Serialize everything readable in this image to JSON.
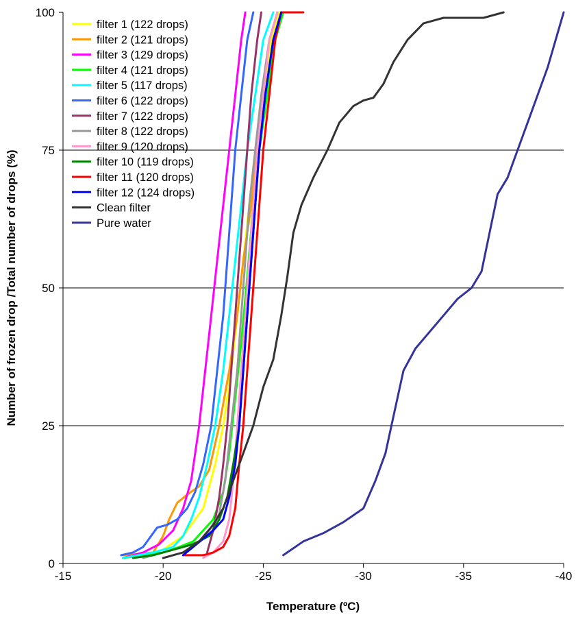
{
  "chart_data": {
    "type": "line",
    "title": "",
    "xlabel": "Temperature (ºC)",
    "ylabel": "Number of frozen drop /Total number of drops (%)",
    "xlim": [
      -15,
      -40
    ],
    "ylim": [
      0,
      100
    ],
    "x_ticks": [
      -15,
      -20,
      -25,
      -30,
      -35,
      -40
    ],
    "x_tick_labels": [
      "-15",
      "-20",
      "-25",
      "-30",
      "-35",
      "-40"
    ],
    "y_ticks": [
      0,
      25,
      50,
      75,
      100
    ],
    "y_tick_labels": [
      "0",
      "25",
      "50",
      "75",
      "100"
    ],
    "gridlines_y": [
      25,
      50,
      75
    ],
    "legend_position": "top-left",
    "series": [
      {
        "name": "filter 1  (122 drops)",
        "color": "#ffff00",
        "points": [
          [
            -18,
            1
          ],
          [
            -19,
            1.5
          ],
          [
            -20,
            2.5
          ],
          [
            -21,
            5
          ],
          [
            -22,
            10
          ],
          [
            -22.6,
            18
          ],
          [
            -23,
            25
          ],
          [
            -23.4,
            35
          ],
          [
            -23.7,
            45
          ],
          [
            -24,
            55
          ],
          [
            -24.3,
            65
          ],
          [
            -24.6,
            75
          ],
          [
            -25,
            85
          ],
          [
            -25.4,
            95
          ],
          [
            -25.8,
            100
          ],
          [
            -26,
            100
          ]
        ]
      },
      {
        "name": "filter 2  (121 drops)",
        "color": "#ff9900",
        "points": [
          [
            -18,
            1.5
          ],
          [
            -19.5,
            2
          ],
          [
            -20,
            5
          ],
          [
            -20.3,
            8
          ],
          [
            -20.7,
            11
          ],
          [
            -21.2,
            12.5
          ],
          [
            -21.8,
            14
          ],
          [
            -22.3,
            17
          ],
          [
            -22.8,
            25
          ],
          [
            -23.3,
            35
          ],
          [
            -23.7,
            45
          ],
          [
            -24,
            55
          ],
          [
            -24.4,
            65
          ],
          [
            -24.7,
            75
          ],
          [
            -25.1,
            85
          ],
          [
            -25.5,
            95
          ],
          [
            -25.9,
            100
          ]
        ]
      },
      {
        "name": "filter 3  (129 drops)",
        "color": "#ff00ff",
        "points": [
          [
            -18,
            1
          ],
          [
            -19,
            2
          ],
          [
            -19.8,
            3.5
          ],
          [
            -20.5,
            6
          ],
          [
            -21,
            10
          ],
          [
            -21.4,
            15
          ],
          [
            -21.8,
            25
          ],
          [
            -22.1,
            35
          ],
          [
            -22.4,
            45
          ],
          [
            -22.7,
            55
          ],
          [
            -23,
            65
          ],
          [
            -23.3,
            75
          ],
          [
            -23.6,
            85
          ],
          [
            -23.9,
            95
          ],
          [
            -24.1,
            100
          ]
        ]
      },
      {
        "name": "filter 4  (121 drops)",
        "color": "#00ff00",
        "points": [
          [
            -18,
            1
          ],
          [
            -19,
            1.5
          ],
          [
            -20,
            2
          ],
          [
            -20.8,
            3
          ],
          [
            -21.5,
            4
          ],
          [
            -22,
            6
          ],
          [
            -22.5,
            8
          ],
          [
            -23,
            13
          ],
          [
            -23.3,
            20
          ],
          [
            -23.6,
            30
          ],
          [
            -23.9,
            40
          ],
          [
            -24.2,
            52
          ],
          [
            -24.5,
            65
          ],
          [
            -24.8,
            75
          ],
          [
            -25.2,
            85
          ],
          [
            -25.6,
            95
          ],
          [
            -26,
            100
          ]
        ]
      },
      {
        "name": "filter 5  (117 drops)",
        "color": "#00ffff",
        "points": [
          [
            -18,
            1
          ],
          [
            -19.5,
            2
          ],
          [
            -20.5,
            3
          ],
          [
            -21,
            5
          ],
          [
            -21.4,
            8
          ],
          [
            -21.8,
            12
          ],
          [
            -22.2,
            18
          ],
          [
            -22.6,
            25
          ],
          [
            -23,
            35
          ],
          [
            -23.3,
            45
          ],
          [
            -23.6,
            55
          ],
          [
            -23.9,
            65
          ],
          [
            -24.2,
            75
          ],
          [
            -24.6,
            85
          ],
          [
            -25,
            95
          ],
          [
            -25.5,
            100
          ]
        ]
      },
      {
        "name": "filter 6  (122 drops)",
        "color": "#3366ff",
        "points": [
          [
            -17.9,
            1.5
          ],
          [
            -18.5,
            2
          ],
          [
            -19,
            3
          ],
          [
            -19.4,
            5
          ],
          [
            -19.7,
            6.5
          ],
          [
            -20.2,
            7
          ],
          [
            -20.7,
            8
          ],
          [
            -21.2,
            10
          ],
          [
            -21.6,
            13
          ],
          [
            -22,
            18
          ],
          [
            -22.4,
            25
          ],
          [
            -22.7,
            35
          ],
          [
            -23,
            45
          ],
          [
            -23.2,
            55
          ],
          [
            -23.4,
            65
          ],
          [
            -23.6,
            75
          ],
          [
            -23.9,
            85
          ],
          [
            -24.2,
            95
          ],
          [
            -24.5,
            100
          ]
        ]
      },
      {
        "name": "filter 7  (122 drops)",
        "color": "#993366",
        "points": [
          [
            -22.2,
            2
          ],
          [
            -22.5,
            6
          ],
          [
            -22.8,
            12
          ],
          [
            -23,
            18
          ],
          [
            -23.2,
            25
          ],
          [
            -23.4,
            35
          ],
          [
            -23.6,
            45
          ],
          [
            -23.8,
            55
          ],
          [
            -24,
            65
          ],
          [
            -24.2,
            75
          ],
          [
            -24.4,
            85
          ],
          [
            -24.7,
            95
          ],
          [
            -24.9,
            100
          ]
        ]
      },
      {
        "name": "filter 8  (122 drops)",
        "color": "#999999",
        "points": [
          [
            -19,
            1
          ],
          [
            -20,
            2
          ],
          [
            -21,
            3
          ],
          [
            -21.8,
            4
          ],
          [
            -22.3,
            6
          ],
          [
            -22.8,
            9
          ],
          [
            -23.1,
            15
          ],
          [
            -23.4,
            25
          ],
          [
            -23.7,
            35
          ],
          [
            -23.9,
            45
          ],
          [
            -24.1,
            55
          ],
          [
            -24.3,
            65
          ],
          [
            -24.6,
            75
          ],
          [
            -24.9,
            85
          ],
          [
            -25.3,
            95
          ],
          [
            -25.7,
            100
          ]
        ]
      },
      {
        "name": "filter 9  (120 drops)",
        "color": "#ff99cc",
        "points": [
          [
            -22,
            1
          ],
          [
            -22.5,
            2
          ],
          [
            -23,
            4
          ],
          [
            -23.3,
            8
          ],
          [
            -23.5,
            15
          ],
          [
            -23.7,
            25
          ],
          [
            -23.9,
            35
          ],
          [
            -24.1,
            45
          ],
          [
            -24.3,
            55
          ],
          [
            -24.5,
            65
          ],
          [
            -24.7,
            75
          ],
          [
            -25,
            85
          ],
          [
            -25.3,
            95
          ],
          [
            -25.7,
            100
          ]
        ]
      },
      {
        "name": "filter 10 (119 drops)",
        "color": "#008000",
        "points": [
          [
            -18.5,
            1
          ],
          [
            -19.5,
            1.5
          ],
          [
            -20.5,
            2.5
          ],
          [
            -21.5,
            3.5
          ],
          [
            -22.3,
            5
          ],
          [
            -22.8,
            8
          ],
          [
            -23.2,
            12
          ],
          [
            -23.5,
            18
          ],
          [
            -23.8,
            25
          ],
          [
            -24,
            35
          ],
          [
            -24.2,
            45
          ],
          [
            -24.4,
            55
          ],
          [
            -24.6,
            65
          ],
          [
            -24.8,
            75
          ],
          [
            -25.1,
            85
          ],
          [
            -25.5,
            95
          ],
          [
            -25.9,
            100
          ]
        ]
      },
      {
        "name": "filter 11 (120 drops)",
        "color": "#ff0000",
        "points": [
          [
            -21,
            1.5
          ],
          [
            -21.5,
            1.5
          ],
          [
            -22,
            1.5
          ],
          [
            -22.5,
            2
          ],
          [
            -23,
            3
          ],
          [
            -23.3,
            5
          ],
          [
            -23.6,
            10
          ],
          [
            -23.8,
            18
          ],
          [
            -24,
            25
          ],
          [
            -24.2,
            35
          ],
          [
            -24.4,
            45
          ],
          [
            -24.6,
            55
          ],
          [
            -24.8,
            65
          ],
          [
            -25,
            75
          ],
          [
            -25.3,
            85
          ],
          [
            -25.6,
            95
          ],
          [
            -25.9,
            100
          ],
          [
            -26.5,
            100
          ],
          [
            -27,
            100
          ]
        ]
      },
      {
        "name": "filter 12 (124 drops)",
        "color": "#0000ff",
        "points": [
          [
            -21,
            1.5
          ],
          [
            -21.5,
            3
          ],
          [
            -22,
            4.5
          ],
          [
            -22.5,
            6
          ],
          [
            -23,
            8
          ],
          [
            -23.3,
            12
          ],
          [
            -23.6,
            18
          ],
          [
            -23.8,
            25
          ],
          [
            -24,
            35
          ],
          [
            -24.2,
            45
          ],
          [
            -24.4,
            55
          ],
          [
            -24.6,
            65
          ],
          [
            -24.8,
            75
          ],
          [
            -25.1,
            85
          ],
          [
            -25.5,
            95
          ],
          [
            -25.9,
            100
          ]
        ]
      },
      {
        "name": "Clean filter",
        "color": "#333333",
        "points": [
          [
            -20,
            1
          ],
          [
            -21,
            2
          ],
          [
            -21.8,
            4
          ],
          [
            -22.5,
            7
          ],
          [
            -23,
            10
          ],
          [
            -23.5,
            15
          ],
          [
            -24,
            20
          ],
          [
            -24.5,
            25
          ],
          [
            -25,
            32
          ],
          [
            -25.5,
            37
          ],
          [
            -25.9,
            45
          ],
          [
            -26.2,
            52
          ],
          [
            -26.5,
            60
          ],
          [
            -26.9,
            65
          ],
          [
            -27.5,
            70
          ],
          [
            -28.2,
            75
          ],
          [
            -28.8,
            80
          ],
          [
            -29.5,
            83
          ],
          [
            -30,
            84
          ],
          [
            -30.5,
            84.5
          ],
          [
            -31,
            87
          ],
          [
            -31.5,
            91
          ],
          [
            -32.2,
            95
          ],
          [
            -33,
            98
          ],
          [
            -34,
            99
          ],
          [
            -35,
            99
          ],
          [
            -36,
            99
          ],
          [
            -37,
            100
          ]
        ]
      },
      {
        "name": "Pure water",
        "color": "#333399",
        "points": [
          [
            -26,
            1.5
          ],
          [
            -27,
            4
          ],
          [
            -28,
            5.5
          ],
          [
            -29,
            7.5
          ],
          [
            -30,
            10
          ],
          [
            -30.6,
            15
          ],
          [
            -31.1,
            20
          ],
          [
            -31.4,
            25
          ],
          [
            -31.7,
            30
          ],
          [
            -32,
            35
          ],
          [
            -32.6,
            39
          ],
          [
            -33.3,
            42
          ],
          [
            -34,
            45
          ],
          [
            -34.7,
            48
          ],
          [
            -35.4,
            50
          ],
          [
            -35.9,
            53
          ],
          [
            -36.3,
            60
          ],
          [
            -36.7,
            67
          ],
          [
            -37.2,
            70
          ],
          [
            -37.7,
            75
          ],
          [
            -38.2,
            80
          ],
          [
            -38.7,
            85
          ],
          [
            -39.2,
            90
          ],
          [
            -39.6,
            95
          ],
          [
            -40,
            100
          ]
        ]
      }
    ]
  }
}
